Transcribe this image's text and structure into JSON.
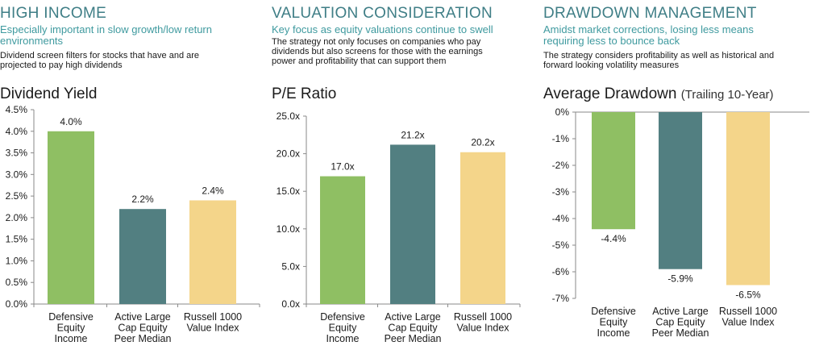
{
  "panels": [
    {
      "heading": "HIGH INCOME",
      "subheading": "Especially important in slow growth/low return environments",
      "description": "Dividend screen filters for stocks that have and are projected to pay high dividends"
    },
    {
      "heading": "VALUATION CONSIDERATION",
      "subheading": "Key focus as equity valuations continue to swell",
      "description": "The strategy not only focuses on companies who pay dividends but also screens for those with the earnings power and profitability that can support them"
    },
    {
      "heading": "DRAWDOWN MANAGEMENT",
      "subheading": "Amidst market corrections, losing less means requiring less to bounce back",
      "description": "The strategy considers profitability as well as historical and forward looking volatility measures"
    }
  ],
  "colors": {
    "green": "#8fbf63",
    "teal": "#527f81",
    "yellow": "#f4d58a",
    "heading": "#3f7e86",
    "subheading": "#3f9a9f"
  },
  "chart_data": [
    {
      "type": "bar",
      "title": "Dividend Yield",
      "title_suffix": "",
      "categories": [
        [
          "Defensive",
          "Equity",
          "Income"
        ],
        [
          "Active Large",
          "Cap Equity",
          "Peer Median"
        ],
        [
          "Russell 1000",
          "Value Index"
        ]
      ],
      "values": [
        4.0,
        2.2,
        2.4
      ],
      "value_labels": [
        "4.0%",
        "2.2%",
        "2.4%"
      ],
      "ylim": [
        0,
        4.5
      ],
      "yticks": [
        0,
        0.5,
        1.0,
        1.5,
        2.0,
        2.5,
        3.0,
        3.5,
        4.0,
        4.5
      ],
      "ytick_labels": [
        "0.0%",
        "0.5%",
        "1.0%",
        "1.5%",
        "2.0%",
        "2.5%",
        "3.0%",
        "3.5%",
        "4.0%",
        "4.5%"
      ],
      "bar_colors": [
        "#8fbf63",
        "#527f81",
        "#f4d58a"
      ],
      "grid": false
    },
    {
      "type": "bar",
      "title": "P/E Ratio",
      "title_suffix": "",
      "categories": [
        [
          "Defensive",
          "Equity",
          "Income"
        ],
        [
          "Active Large",
          "Cap Equity",
          "Peer Median"
        ],
        [
          "Russell 1000",
          "Value Index"
        ]
      ],
      "values": [
        17.0,
        21.2,
        20.2
      ],
      "value_labels": [
        "17.0x",
        "21.2x",
        "20.2x"
      ],
      "ylim": [
        0,
        25
      ],
      "yticks": [
        0,
        5,
        10,
        15,
        20,
        25
      ],
      "ytick_labels": [
        "0.0x",
        "5.0x",
        "10.0x",
        "15.0x",
        "20.0x",
        "25.0x"
      ],
      "bar_colors": [
        "#8fbf63",
        "#527f81",
        "#f4d58a"
      ],
      "grid": false
    },
    {
      "type": "bar",
      "title": "Average Drawdown",
      "title_suffix": "(Trailing 10-Year)",
      "categories": [
        [
          "Defensive",
          "Equity",
          "Income"
        ],
        [
          "Active Large",
          "Cap Equity",
          "Peer Median"
        ],
        [
          "Russell 1000",
          "Value Index"
        ]
      ],
      "values": [
        -4.4,
        -5.9,
        -6.5
      ],
      "value_labels": [
        "-4.4%",
        "-5.9%",
        "-6.5%"
      ],
      "ylim": [
        -7,
        0
      ],
      "yticks": [
        0,
        -1,
        -2,
        -3,
        -4,
        -5,
        -6,
        -7
      ],
      "ytick_labels": [
        "0%",
        "-1%",
        "-2%",
        "-3%",
        "-4%",
        "-5%",
        "-6%",
        "-7%"
      ],
      "bar_colors": [
        "#8fbf63",
        "#527f81",
        "#f4d58a"
      ],
      "grid": false
    }
  ]
}
